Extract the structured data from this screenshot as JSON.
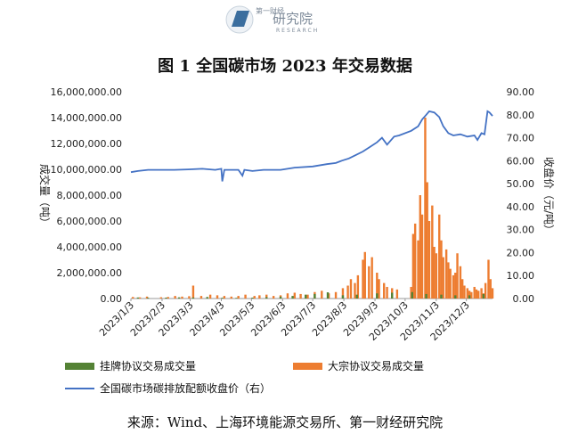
{
  "logo": {
    "brand_small": "第一财经",
    "brand_main": "研究院",
    "brand_sub": "RESEARCH"
  },
  "source_note": "来源：Wind、上海环境能源交易所、第一财经研究院",
  "colors": {
    "line": "#4472c4",
    "bar_listing": "#548235",
    "bar_block": "#ed7d31",
    "logo": "#3b6e9e"
  },
  "chart_data": {
    "type": "bar",
    "title": "图 1 全国碳市场 2023 年交易数据",
    "ylabel_left": "成交量（吨）",
    "ylabel_right": "收盘价（元/吨）",
    "ylim_left": [
      0,
      16000000
    ],
    "ylim_right": [
      0,
      90
    ],
    "yticks_left": [
      "0.00",
      "2,000,000.00",
      "4,000,000.00",
      "6,000,000.00",
      "8,000,000.00",
      "10,000,000.00",
      "12,000,000.00",
      "14,000,000.00",
      "16,000,000.00"
    ],
    "yticks_right": [
      "0.00",
      "10.00",
      "20.00",
      "30.00",
      "40.00",
      "50.00",
      "60.00",
      "70.00",
      "80.00",
      "90.00"
    ],
    "x_ticks": [
      "2023/1/3",
      "2023/2/3",
      "2023/3/3",
      "2023/4/3",
      "2023/5/3",
      "2023/6/3",
      "2023/7/3",
      "2023/8/3",
      "2023/9/3",
      "2023/10/3",
      "2023/11/3",
      "2023/12/3"
    ],
    "x_range": [
      "2023-01-03",
      "2023-12-29"
    ],
    "grid": false,
    "legend_position": "bottom",
    "series": [
      {
        "name": "挂牌协议交易成交量",
        "kind": "bar",
        "color": "#548235",
        "points": [
          [
            "2023-01-10",
            80000
          ],
          [
            "2023-01-20",
            60000
          ],
          [
            "2023-02-07",
            70000
          ],
          [
            "2023-02-20",
            90000
          ],
          [
            "2023-03-06",
            80000
          ],
          [
            "2023-03-20",
            120000
          ],
          [
            "2023-04-04",
            60000
          ],
          [
            "2023-04-18",
            50000
          ],
          [
            "2023-05-04",
            70000
          ],
          [
            "2023-05-18",
            110000
          ],
          [
            "2023-06-01",
            150000
          ],
          [
            "2023-06-13",
            200000
          ],
          [
            "2023-06-26",
            300000
          ],
          [
            "2023-07-05",
            350000
          ],
          [
            "2023-07-18",
            480000
          ],
          [
            "2023-08-02",
            250000
          ],
          [
            "2023-08-16",
            300000
          ],
          [
            "2023-09-05",
            400000
          ],
          [
            "2023-09-20",
            450000
          ],
          [
            "2023-10-10",
            500000
          ],
          [
            "2023-10-24",
            350000
          ],
          [
            "2023-11-08",
            300000
          ],
          [
            "2023-11-22",
            250000
          ],
          [
            "2023-12-06",
            250000
          ],
          [
            "2023-12-20",
            350000
          ]
        ]
      },
      {
        "name": "大宗协议交易成交量",
        "kind": "bar",
        "color": "#ed7d31",
        "points": [
          [
            "2023-01-05",
            120000
          ],
          [
            "2023-01-12",
            90000
          ],
          [
            "2023-01-19",
            150000
          ],
          [
            "2023-02-02",
            100000
          ],
          [
            "2023-02-09",
            120000
          ],
          [
            "2023-02-16",
            200000
          ],
          [
            "2023-02-23",
            150000
          ],
          [
            "2023-03-02",
            180000
          ],
          [
            "2023-03-06",
            1000000
          ],
          [
            "2023-03-14",
            200000
          ],
          [
            "2023-03-23",
            300000
          ],
          [
            "2023-03-30",
            250000
          ],
          [
            "2023-04-06",
            200000
          ],
          [
            "2023-04-13",
            150000
          ],
          [
            "2023-04-20",
            200000
          ],
          [
            "2023-04-27",
            300000
          ],
          [
            "2023-05-06",
            200000
          ],
          [
            "2023-05-11",
            250000
          ],
          [
            "2023-05-18",
            300000
          ],
          [
            "2023-05-25",
            200000
          ],
          [
            "2023-06-01",
            250000
          ],
          [
            "2023-06-08",
            400000
          ],
          [
            "2023-06-15",
            450000
          ],
          [
            "2023-06-21",
            350000
          ],
          [
            "2023-06-28",
            300000
          ],
          [
            "2023-07-05",
            500000
          ],
          [
            "2023-07-12",
            600000
          ],
          [
            "2023-07-19",
            400000
          ],
          [
            "2023-07-26",
            500000
          ],
          [
            "2023-08-02",
            800000
          ],
          [
            "2023-08-07",
            1000000
          ],
          [
            "2023-08-10",
            1500000
          ],
          [
            "2023-08-14",
            1200000
          ],
          [
            "2023-08-17",
            1800000
          ],
          [
            "2023-08-22",
            3000000
          ],
          [
            "2023-08-24",
            3600000
          ],
          [
            "2023-08-28",
            2500000
          ],
          [
            "2023-08-31",
            3200000
          ],
          [
            "2023-09-05",
            2000000
          ],
          [
            "2023-09-07",
            1500000
          ],
          [
            "2023-09-12",
            1200000
          ],
          [
            "2023-09-15",
            900000
          ],
          [
            "2023-09-20",
            800000
          ],
          [
            "2023-09-25",
            700000
          ],
          [
            "2023-10-09",
            900000
          ],
          [
            "2023-10-11",
            5000000
          ],
          [
            "2023-10-13",
            5800000
          ],
          [
            "2023-10-16",
            4500000
          ],
          [
            "2023-10-18",
            8000000
          ],
          [
            "2023-10-20",
            6500000
          ],
          [
            "2023-10-23",
            14000000
          ],
          [
            "2023-10-25",
            9000000
          ],
          [
            "2023-10-27",
            6000000
          ],
          [
            "2023-10-30",
            7200000
          ],
          [
            "2023-11-01",
            4000000
          ],
          [
            "2023-11-03",
            3500000
          ],
          [
            "2023-11-06",
            6500000
          ],
          [
            "2023-11-08",
            4500000
          ],
          [
            "2023-11-10",
            3200000
          ],
          [
            "2023-11-13",
            3800000
          ],
          [
            "2023-11-15",
            2800000
          ],
          [
            "2023-11-17",
            2300000
          ],
          [
            "2023-11-20",
            1800000
          ],
          [
            "2023-11-22",
            2000000
          ],
          [
            "2023-11-24",
            3500000
          ],
          [
            "2023-11-27",
            2500000
          ],
          [
            "2023-11-29",
            1500000
          ],
          [
            "2023-12-01",
            1000000
          ],
          [
            "2023-12-04",
            800000
          ],
          [
            "2023-12-06",
            600000
          ],
          [
            "2023-12-08",
            500000
          ],
          [
            "2023-12-11",
            900000
          ],
          [
            "2023-12-13",
            700000
          ],
          [
            "2023-12-15",
            600000
          ],
          [
            "2023-12-18",
            800000
          ],
          [
            "2023-12-20",
            400000
          ],
          [
            "2023-12-22",
            1200000
          ],
          [
            "2023-12-25",
            3000000
          ],
          [
            "2023-12-27",
            1500000
          ],
          [
            "2023-12-29",
            800000
          ]
        ]
      },
      {
        "name": "全国碳市场碳排放配额收盘价（右）",
        "kind": "line",
        "color": "#4472c4",
        "points": [
          [
            "2023-01-03",
            55.0
          ],
          [
            "2023-01-10",
            55.5
          ],
          [
            "2023-01-20",
            56.0
          ],
          [
            "2023-02-01",
            56.0
          ],
          [
            "2023-02-15",
            56.0
          ],
          [
            "2023-03-01",
            56.2
          ],
          [
            "2023-03-15",
            56.5
          ],
          [
            "2023-03-28",
            56.0
          ],
          [
            "2023-04-03",
            56.5
          ],
          [
            "2023-04-04",
            51.0
          ],
          [
            "2023-04-06",
            56.0
          ],
          [
            "2023-04-12",
            56.0
          ],
          [
            "2023-04-20",
            56.0
          ],
          [
            "2023-04-24",
            53.5
          ],
          [
            "2023-04-26",
            56.0
          ],
          [
            "2023-05-04",
            55.5
          ],
          [
            "2023-05-15",
            56.0
          ],
          [
            "2023-06-01",
            56.0
          ],
          [
            "2023-06-15",
            57.0
          ],
          [
            "2023-07-03",
            57.5
          ],
          [
            "2023-07-17",
            58.5
          ],
          [
            "2023-07-26",
            59.0
          ],
          [
            "2023-08-01",
            60.0
          ],
          [
            "2023-08-08",
            61.0
          ],
          [
            "2023-08-15",
            62.5
          ],
          [
            "2023-08-22",
            64.0
          ],
          [
            "2023-08-29",
            66.0
          ],
          [
            "2023-09-05",
            68.0
          ],
          [
            "2023-09-10",
            70.0
          ],
          [
            "2023-09-15",
            67.0
          ],
          [
            "2023-09-22",
            70.5
          ],
          [
            "2023-09-27",
            71.0
          ],
          [
            "2023-10-09",
            73.0
          ],
          [
            "2023-10-16",
            75.0
          ],
          [
            "2023-10-20",
            78.0
          ],
          [
            "2023-10-24",
            80.0
          ],
          [
            "2023-10-27",
            81.5
          ],
          [
            "2023-11-01",
            81.0
          ],
          [
            "2023-11-06",
            79.0
          ],
          [
            "2023-11-10",
            75.0
          ],
          [
            "2023-11-15",
            72.0
          ],
          [
            "2023-11-20",
            71.0
          ],
          [
            "2023-11-27",
            71.5
          ],
          [
            "2023-12-04",
            70.5
          ],
          [
            "2023-12-11",
            71.0
          ],
          [
            "2023-12-14",
            69.0
          ],
          [
            "2023-12-18",
            72.0
          ],
          [
            "2023-12-21",
            71.5
          ],
          [
            "2023-12-24",
            81.5
          ],
          [
            "2023-12-26",
            81.0
          ],
          [
            "2023-12-29",
            79.5
          ]
        ]
      }
    ]
  }
}
